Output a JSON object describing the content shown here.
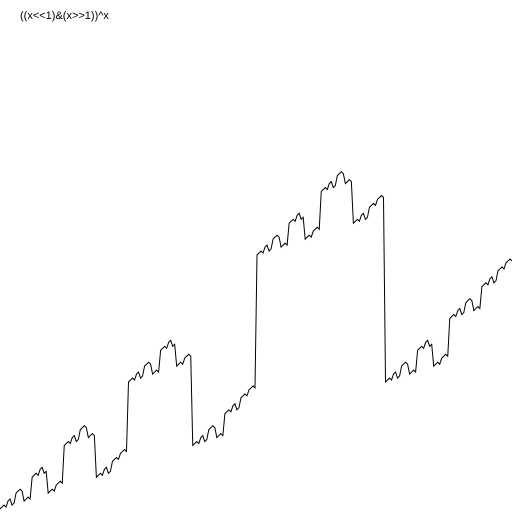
{
  "title": "((x<<1)&(x>>1))^x",
  "colors": {
    "background": "#ffffff",
    "line": "#000000",
    "text": "#000000"
  },
  "chart_data": {
    "type": "line",
    "title": "((x<<1)&(x>>1))^x",
    "xlabel": "",
    "ylabel": "",
    "grid": false,
    "axes_visible": false,
    "x": [
      0,
      1,
      2,
      3,
      4,
      5,
      6,
      7,
      8,
      9,
      10,
      11,
      12,
      13,
      14,
      15,
      16,
      17,
      18,
      19,
      20,
      21,
      22,
      23,
      24,
      25,
      26,
      27,
      28,
      29,
      30,
      31,
      32,
      33,
      34,
      35,
      36,
      37,
      38,
      39,
      40,
      41,
      42,
      43,
      44,
      45,
      46,
      47,
      48,
      49,
      50,
      51,
      52,
      53,
      54,
      55,
      56,
      57,
      58,
      59,
      60,
      61,
      62,
      63,
      64,
      65,
      66,
      67,
      68,
      69,
      70,
      71,
      72,
      73,
      74,
      75,
      76,
      77,
      78,
      79,
      80,
      81,
      82,
      83,
      84,
      85,
      86,
      87,
      88,
      89,
      90,
      91,
      92,
      93,
      94,
      95,
      96,
      97,
      98,
      99,
      100,
      101,
      102,
      103,
      104,
      105,
      106,
      107,
      108,
      109,
      110,
      111,
      112,
      113,
      114,
      115,
      116,
      117,
      118,
      119,
      120,
      121,
      122,
      123,
      124,
      125,
      126,
      127,
      128,
      129,
      130,
      131,
      132,
      133,
      134,
      135,
      136,
      137,
      138,
      139,
      140,
      141,
      142,
      143,
      144,
      145,
      146,
      147,
      148,
      149,
      150,
      151,
      152,
      153,
      154,
      155,
      156,
      157,
      158,
      159,
      160,
      161,
      162,
      163,
      164,
      165,
      166,
      167,
      168,
      169,
      170,
      171,
      172,
      173,
      174,
      175,
      176,
      177,
      178,
      179,
      180,
      181,
      182,
      183,
      184,
      185,
      186,
      187,
      188,
      189,
      190,
      191,
      192,
      193,
      194,
      195,
      196,
      197,
      198,
      199,
      200,
      201,
      202,
      203,
      204,
      205,
      206,
      207,
      208,
      209,
      210,
      211,
      212,
      213,
      214,
      215,
      216,
      217,
      218,
      219,
      220,
      221,
      222,
      223,
      224,
      225,
      226,
      227,
      228,
      229,
      230,
      231,
      232,
      233,
      234,
      235,
      236,
      237,
      238,
      239,
      240,
      241,
      242,
      243,
      244,
      245,
      246,
      247,
      248,
      249,
      250,
      251,
      252,
      253,
      254,
      255
    ],
    "xlim": [
      0,
      255
    ],
    "ylim": [
      0,
      255
    ],
    "series": [
      {
        "name": "",
        "values": [
          0,
          1,
          2,
          1,
          4,
          5,
          2,
          3,
          8,
          9,
          10,
          9,
          4,
          5,
          6,
          5,
          16,
          17,
          18,
          17,
          20,
          21,
          18,
          19,
          8,
          9,
          10,
          9,
          12,
          13,
          14,
          13,
          32,
          33,
          34,
          33,
          36,
          37,
          34,
          35,
          40,
          41,
          42,
          41,
          36,
          37,
          38,
          37,
          16,
          17,
          18,
          17,
          20,
          21,
          18,
          19,
          24,
          25,
          26,
          25,
          28,
          29,
          30,
          29,
          64,
          65,
          66,
          65,
          68,
          69,
          66,
          67,
          72,
          73,
          74,
          73,
          68,
          69,
          70,
          69,
          80,
          81,
          82,
          81,
          84,
          85,
          82,
          83,
          72,
          73,
          74,
          73,
          76,
          77,
          78,
          77,
          32,
          33,
          34,
          33,
          36,
          37,
          34,
          35,
          40,
          41,
          42,
          41,
          36,
          37,
          38,
          37,
          48,
          49,
          50,
          49,
          52,
          53,
          50,
          51,
          56,
          57,
          58,
          57,
          60,
          61,
          62,
          61,
          128,
          129,
          130,
          129,
          132,
          133,
          130,
          131,
          136,
          137,
          138,
          137,
          132,
          133,
          134,
          133,
          144,
          145,
          146,
          145,
          148,
          149,
          146,
          147,
          136,
          137,
          138,
          137,
          140,
          141,
          142,
          141,
          160,
          161,
          162,
          161,
          164,
          165,
          162,
          163,
          168,
          169,
          170,
          169,
          164,
          165,
          166,
          165,
          144,
          145,
          146,
          145,
          148,
          149,
          146,
          147,
          152,
          153,
          154,
          153,
          156,
          157,
          158,
          157,
          64,
          65,
          66,
          65,
          68,
          69,
          66,
          67,
          72,
          73,
          74,
          73,
          68,
          69,
          70,
          69,
          80,
          81,
          82,
          81,
          84,
          85,
          82,
          83,
          72,
          73,
          74,
          73,
          76,
          77,
          78,
          77,
          96,
          97,
          98,
          97,
          100,
          101,
          98,
          99,
          104,
          105,
          106,
          105,
          100,
          101,
          102,
          101,
          112,
          113,
          114,
          113,
          116,
          117,
          114,
          115,
          120,
          121,
          122,
          121,
          124,
          125,
          126,
          125
        ]
      }
    ]
  }
}
